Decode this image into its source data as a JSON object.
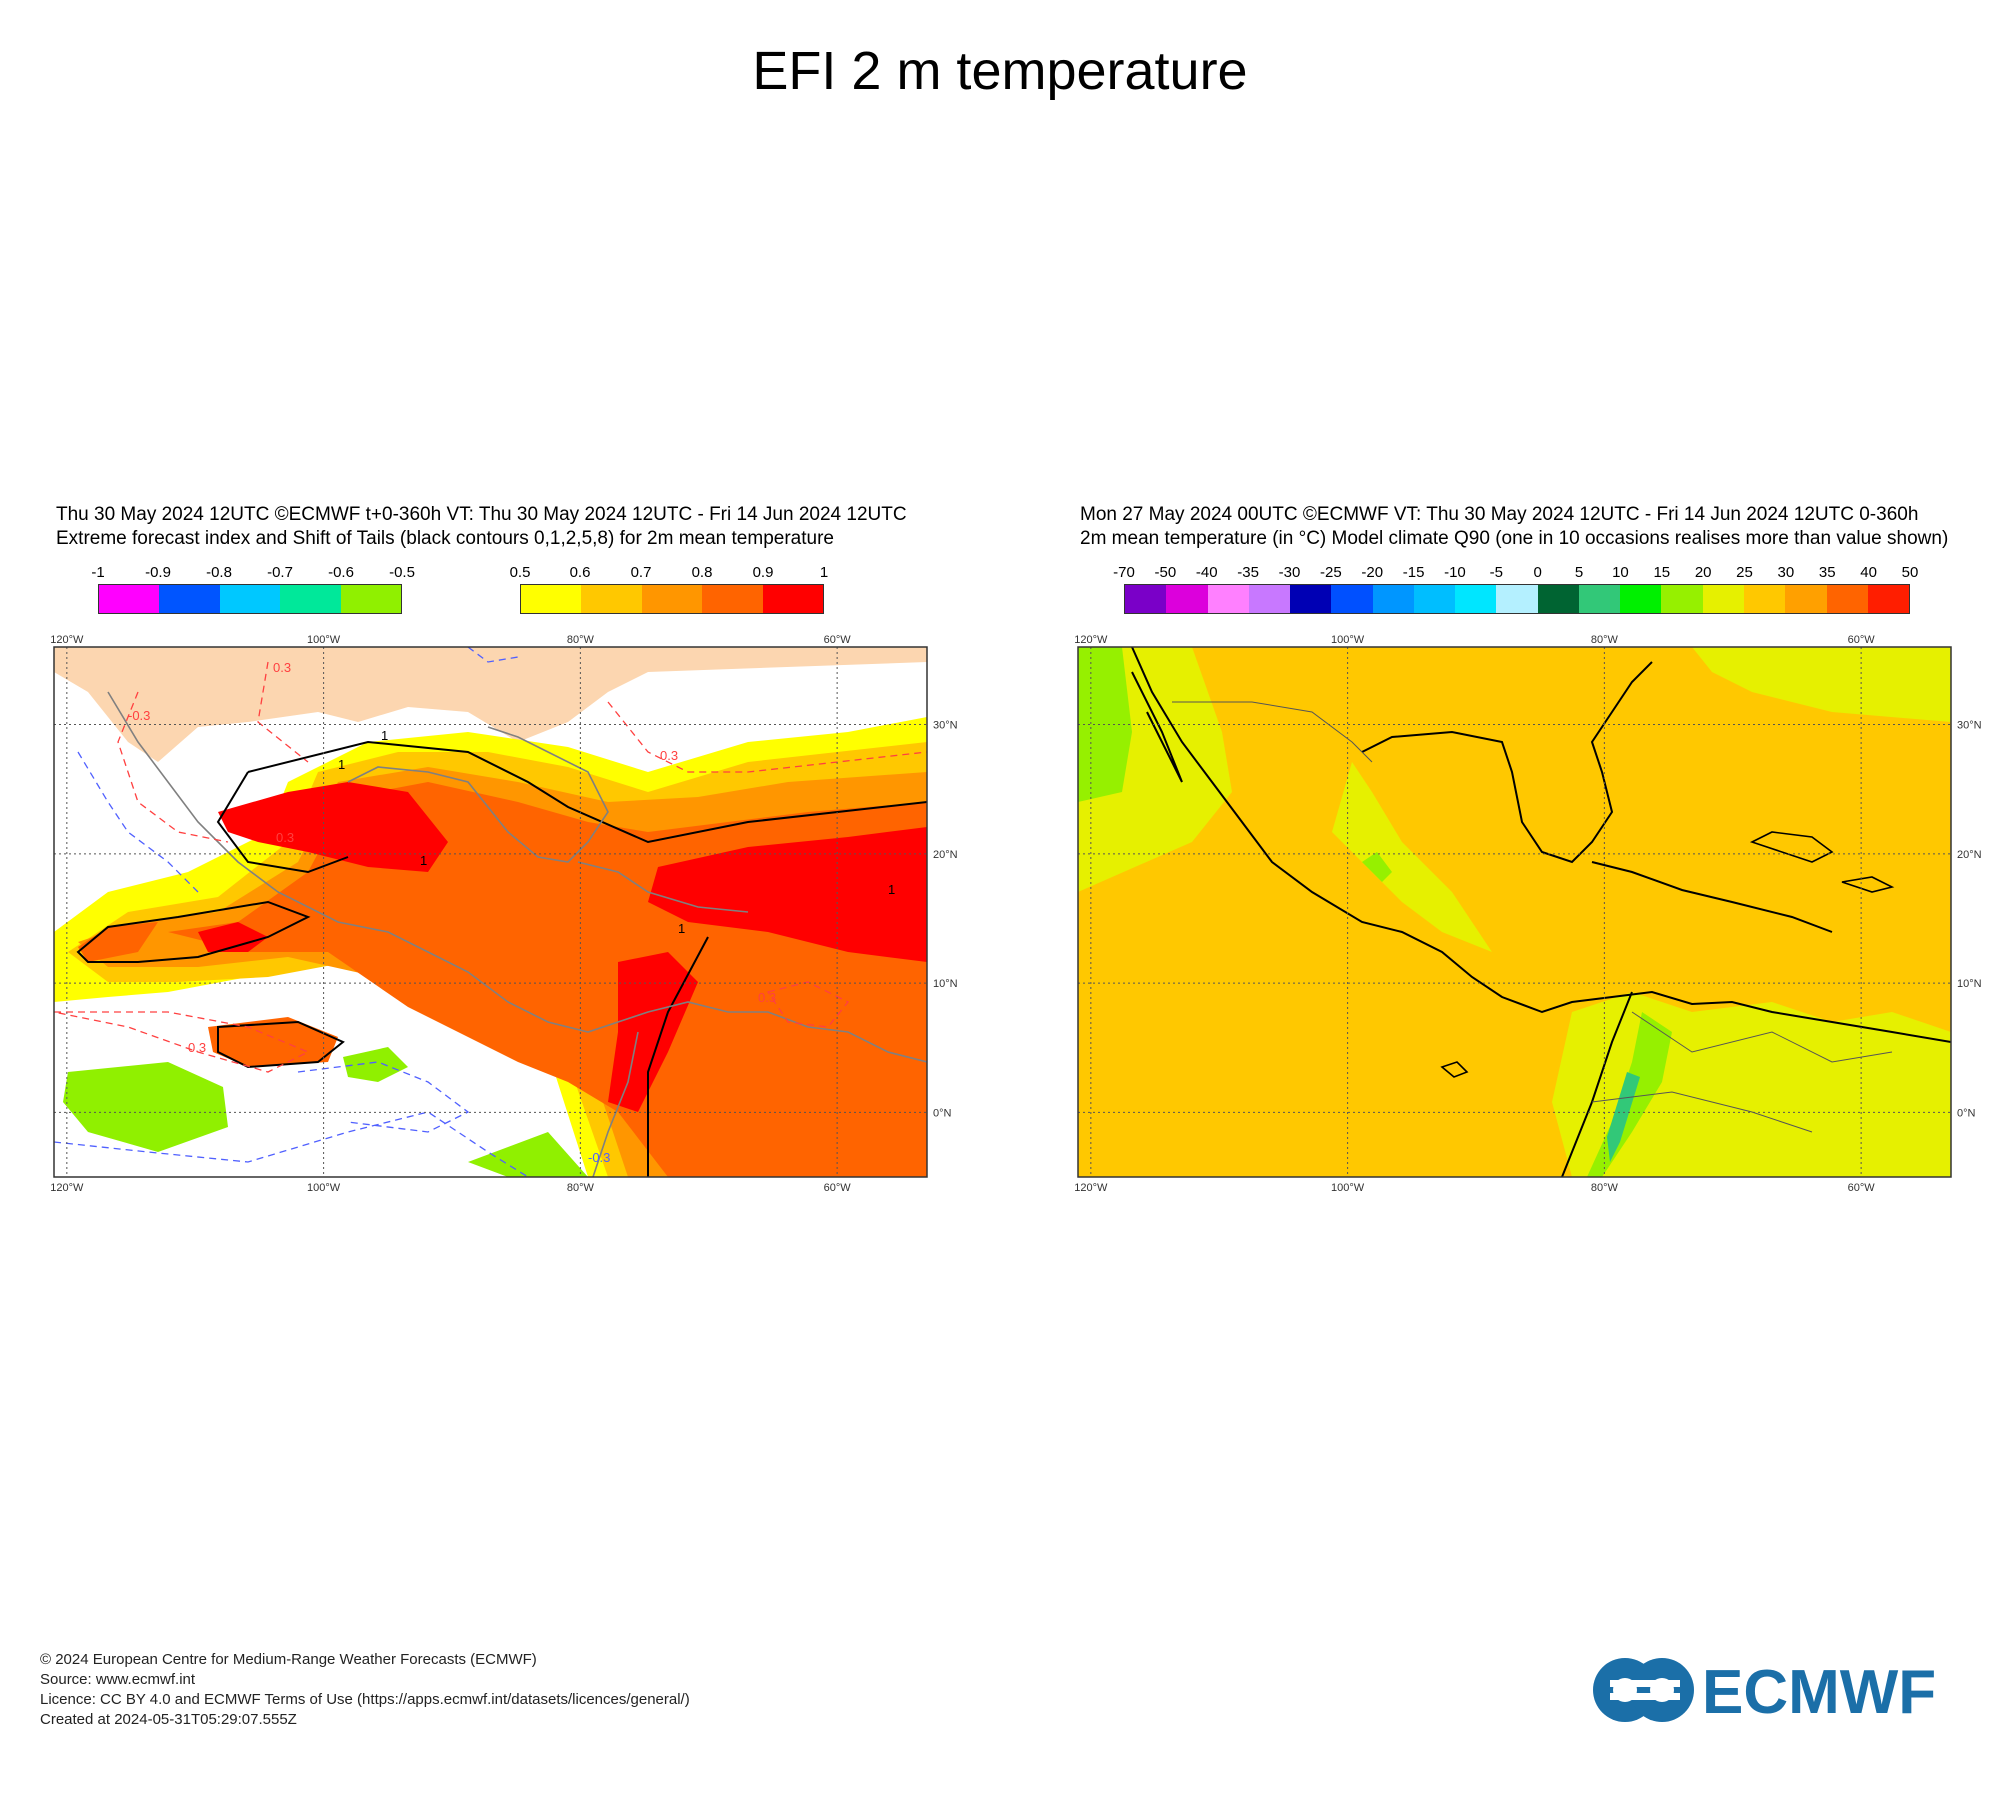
{
  "page": {
    "title": "EFI 2 m temperature"
  },
  "left_panel": {
    "header_line1": "Thu 30 May 2024 12UTC ©ECMWF t+0-360h  VT: Thu 30 May 2024 12UTC - Fri 14 Jun 2024 12UTC",
    "header_line2": "Extreme forecast index and Shift of Tails (black contours 0,1,2,5,8) for 2m mean temperature",
    "legend_negative": {
      "labels": [
        "-1",
        "-0.9",
        "-0.8",
        "-0.7",
        "-0.6",
        "-0.5"
      ],
      "colors": [
        "#ff00ff",
        "#0055ff",
        "#00c8ff",
        "#00e89a",
        "#90f000"
      ]
    },
    "legend_positive": {
      "labels": [
        "0.5",
        "0.6",
        "0.7",
        "0.8",
        "0.9",
        "1"
      ],
      "colors": [
        "#ffff00",
        "#ffc800",
        "#ff9600",
        "#ff6400",
        "#ff0000"
      ]
    },
    "contour_labels": [
      "1",
      "1",
      "1",
      "1",
      "1",
      "-0.3",
      "-0.3",
      "0.3",
      "0.3",
      "0.3",
      "0.3",
      "0.3"
    ]
  },
  "right_panel": {
    "header_line1": "Mon 27 May 2024 00UTC ©ECMWF VT: Thu 30 May 2024 12UTC - Fri 14 Jun 2024 12UTC   0-360h",
    "header_line2": "2m mean temperature (in °C)  Model climate Q90 (one in 10 occasions realises more than value shown)",
    "legend": {
      "labels": [
        "-70",
        "-50",
        "-40",
        "-35",
        "-30",
        "-25",
        "-20",
        "-15",
        "-10",
        "-5",
        "0",
        "5",
        "10",
        "15",
        "20",
        "25",
        "30",
        "35",
        "40",
        "50"
      ],
      "colors": [
        "#7a00c8",
        "#dc00dc",
        "#ff80ff",
        "#c878ff",
        "#0000b4",
        "#0050ff",
        "#0096ff",
        "#00beff",
        "#00e6ff",
        "#b4f0ff",
        "#006432",
        "#32c878",
        "#00f000",
        "#96f000",
        "#e6f000",
        "#ffc800",
        "#ffa000",
        "#ff6400",
        "#ff1e00"
      ]
    }
  },
  "axes": {
    "lon_labels": [
      "120°W",
      "100°W",
      "80°W",
      "60°W"
    ],
    "lat_labels": [
      "30°N",
      "20°N",
      "10°N",
      "0°N"
    ],
    "lon_range": [
      -121,
      -53
    ],
    "lat_range": [
      -5,
      36
    ],
    "lon_ticks": [
      -120,
      -100,
      -80,
      -60
    ],
    "lat_ticks": [
      30,
      20,
      10,
      0
    ]
  },
  "footer": {
    "line1": "© 2024 European Centre for Medium-Range Weather Forecasts (ECMWF)",
    "line2": "Source: www.ecmwf.int",
    "line3": "Licence: CC BY 4.0 and ECMWF Terms of Use (https://apps.ecmwf.int/datasets/licences/general/)",
    "line4": "Created at 2024-05-31T05:29:07.555Z"
  },
  "logo": {
    "text": "ECMWF",
    "color": "#1b6fa8"
  }
}
